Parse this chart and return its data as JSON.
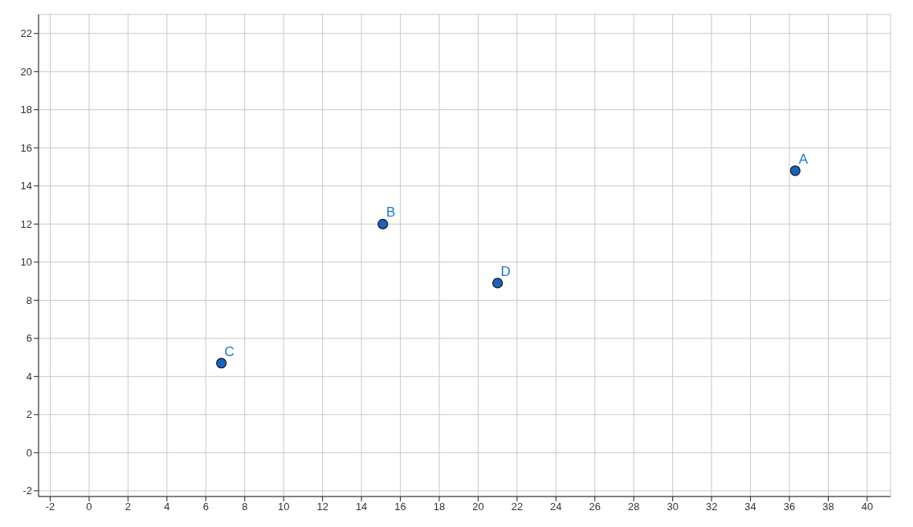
{
  "chart_data": {
    "type": "scatter",
    "x": [
      36.3,
      15.1,
      6.8,
      21.0
    ],
    "values": [
      14.8,
      12.0,
      4.7,
      8.9
    ],
    "color": "#1565c0",
    "marker": "circle",
    "xlim": [
      -2.6,
      41.2
    ],
    "ylim": [
      -2.3,
      23
    ],
    "xticks": [
      -2,
      0,
      2,
      4,
      6,
      8,
      10,
      12,
      14,
      16,
      18,
      20,
      22,
      24,
      26,
      28,
      30,
      32,
      34,
      36,
      38,
      40
    ],
    "yticks": [
      -2,
      0,
      2,
      4,
      6,
      8,
      10,
      12,
      14,
      16,
      18,
      20,
      22
    ],
    "grid": true,
    "annotations": [
      {
        "text": "A",
        "x": 36.3,
        "y": 14.8
      },
      {
        "text": "B",
        "x": 15.1,
        "y": 12.0
      },
      {
        "text": "C",
        "x": 6.8,
        "y": 4.7
      },
      {
        "text": "D",
        "x": 21.0,
        "y": 8.9
      }
    ]
  }
}
